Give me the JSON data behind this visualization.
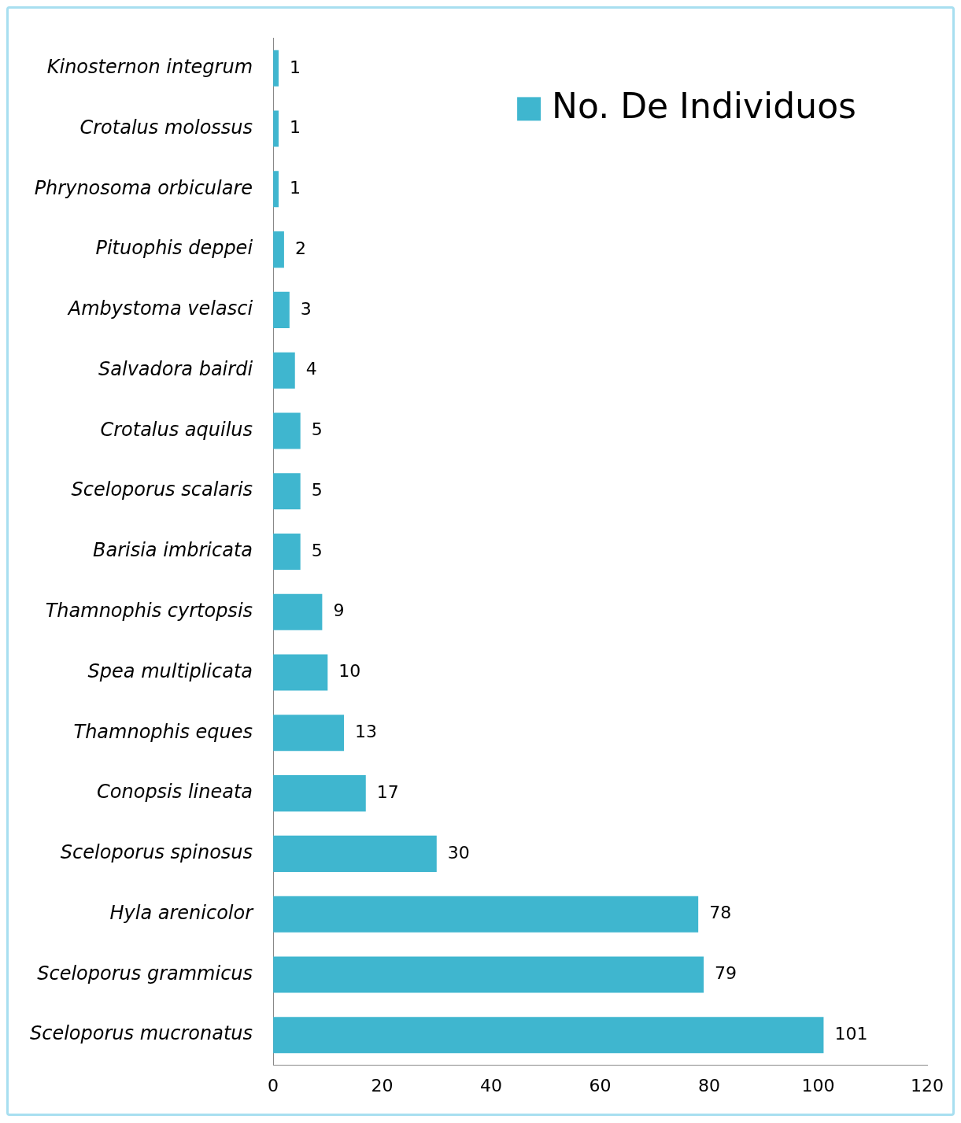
{
  "chart_data": {
    "type": "bar",
    "orientation": "horizontal",
    "categories": [
      "Kinosternon integrum",
      "Crotalus molossus",
      "Phrynosoma orbiculare",
      "Pituophis deppei",
      "Ambystoma velasci",
      "Salvadora bairdi",
      "Crotalus aquilus",
      "Sceloporus scalaris",
      "Barisia imbricata",
      "Thamnophis cyrtopsis",
      "Spea multiplicata",
      "Thamnophis eques",
      "Conopsis lineata",
      "Sceloporus spinosus",
      "Hyla arenicolor",
      "Sceloporus grammicus",
      "Sceloporus mucronatus"
    ],
    "series": [
      {
        "name": "No. De Individuos",
        "color": "#3fb6cf",
        "values": [
          1,
          1,
          1,
          2,
          3,
          4,
          5,
          5,
          5,
          9,
          10,
          13,
          17,
          30,
          78,
          79,
          101
        ]
      }
    ],
    "xlim": [
      0,
      120
    ],
    "xticks": [
      0,
      20,
      40,
      60,
      80,
      100,
      120
    ],
    "grid": false,
    "legend": "top right",
    "data_labels": true
  }
}
